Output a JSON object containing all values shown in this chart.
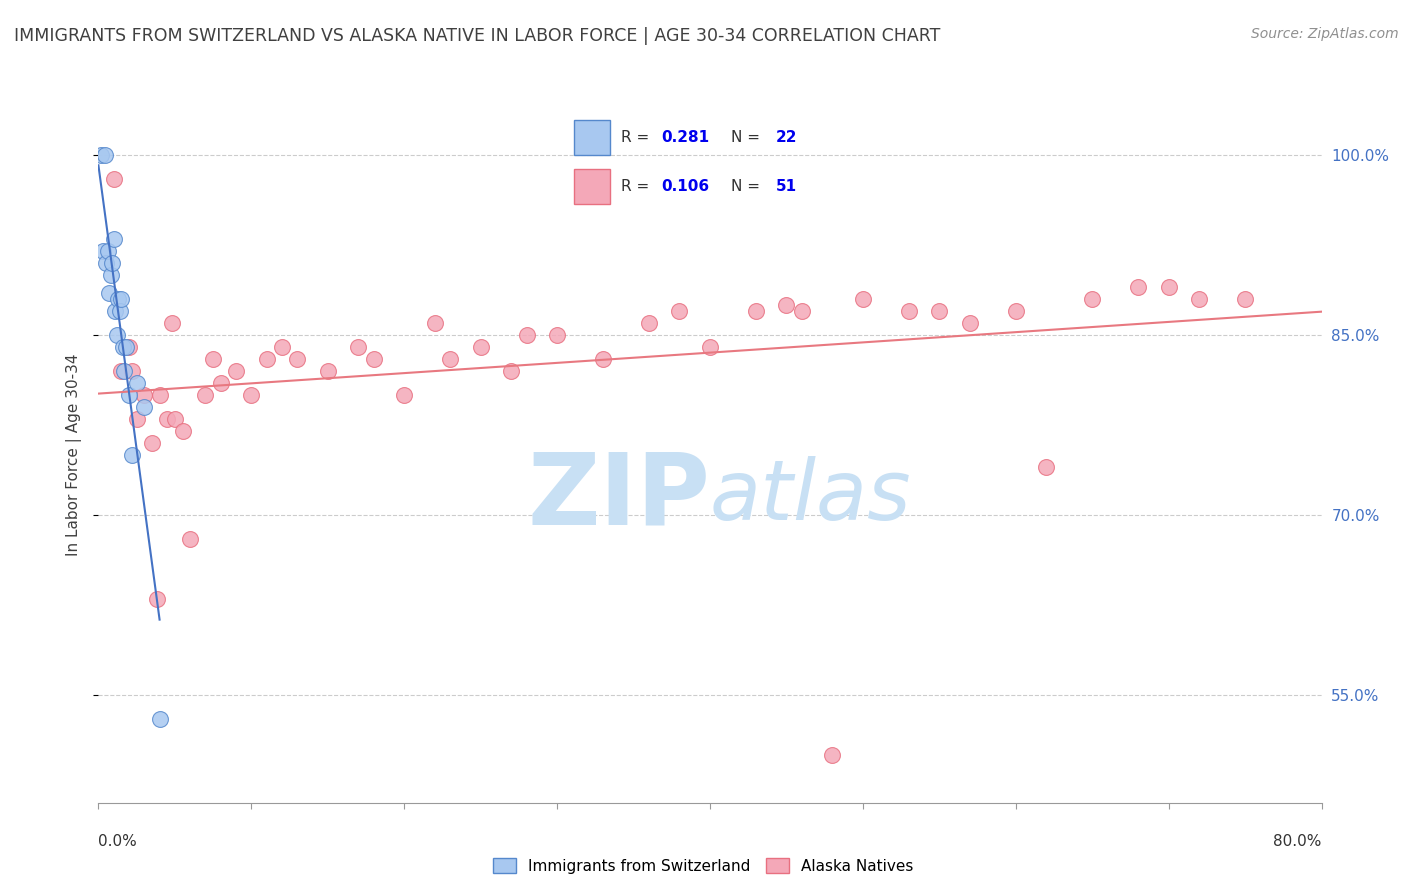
{
  "title": "IMMIGRANTS FROM SWITZERLAND VS ALASKA NATIVE IN LABOR FORCE | AGE 30-34 CORRELATION CHART",
  "source": "Source: ZipAtlas.com",
  "ylabel": "In Labor Force | Age 30-34",
  "legend_label1": "Immigrants from Switzerland",
  "legend_label2": "Alaska Natives",
  "legend_R1": "0.281",
  "legend_N1": "22",
  "legend_R2": "0.106",
  "legend_N2": "51",
  "watermark_zip": "ZIP",
  "watermark_atlas": "atlas",
  "xmin": 0.0,
  "xmax": 80.0,
  "ymin": 46.0,
  "ymax": 104.0,
  "yticks": [
    55.0,
    70.0,
    85.0,
    100.0
  ],
  "color_blue": "#A8C8F0",
  "color_pink": "#F4A8B8",
  "color_blue_edge": "#5588CC",
  "color_pink_edge": "#E87080",
  "color_blue_line": "#4472C4",
  "color_pink_line": "#E87880",
  "color_title": "#404040",
  "color_source": "#909090",
  "color_ytick": "#4472C4",
  "color_grid": "#CCCCCC",
  "color_watermark": "#C8E0F4",
  "swiss_x": [
    0.2,
    0.3,
    0.4,
    0.5,
    0.6,
    0.7,
    0.8,
    0.9,
    1.0,
    1.1,
    1.2,
    1.3,
    1.4,
    1.5,
    1.6,
    1.7,
    1.8,
    2.0,
    2.2,
    2.5,
    3.0,
    4.0
  ],
  "swiss_y": [
    100.0,
    92.0,
    100.0,
    91.0,
    92.0,
    88.5,
    90.0,
    91.0,
    93.0,
    87.0,
    85.0,
    88.0,
    87.0,
    88.0,
    84.0,
    82.0,
    84.0,
    80.0,
    75.0,
    81.0,
    79.0,
    53.0
  ],
  "alaska_x": [
    1.0,
    1.5,
    2.0,
    2.5,
    3.0,
    3.5,
    4.0,
    4.5,
    5.0,
    5.5,
    6.0,
    7.0,
    8.0,
    9.0,
    10.0,
    11.0,
    13.0,
    15.0,
    17.0,
    20.0,
    23.0,
    25.0,
    27.0,
    30.0,
    33.0,
    36.0,
    40.0,
    43.0,
    46.0,
    50.0,
    53.0,
    57.0,
    60.0,
    65.0,
    70.0,
    75.0,
    2.2,
    4.8,
    7.5,
    12.0,
    18.0,
    22.0,
    28.0,
    38.0,
    45.0,
    55.0,
    62.0,
    68.0,
    72.0,
    48.0,
    3.8
  ],
  "alaska_y": [
    98.0,
    82.0,
    84.0,
    78.0,
    80.0,
    76.0,
    80.0,
    78.0,
    78.0,
    77.0,
    68.0,
    80.0,
    81.0,
    82.0,
    80.0,
    83.0,
    83.0,
    82.0,
    84.0,
    80.0,
    83.0,
    84.0,
    82.0,
    85.0,
    83.0,
    86.0,
    84.0,
    87.0,
    87.0,
    88.0,
    87.0,
    86.0,
    87.0,
    88.0,
    89.0,
    88.0,
    82.0,
    86.0,
    83.0,
    84.0,
    83.0,
    86.0,
    85.0,
    87.0,
    87.5,
    87.0,
    74.0,
    89.0,
    88.0,
    50.0,
    63.0
  ],
  "xtick_positions": [
    0,
    10,
    20,
    30,
    40,
    50,
    60,
    70,
    80
  ]
}
